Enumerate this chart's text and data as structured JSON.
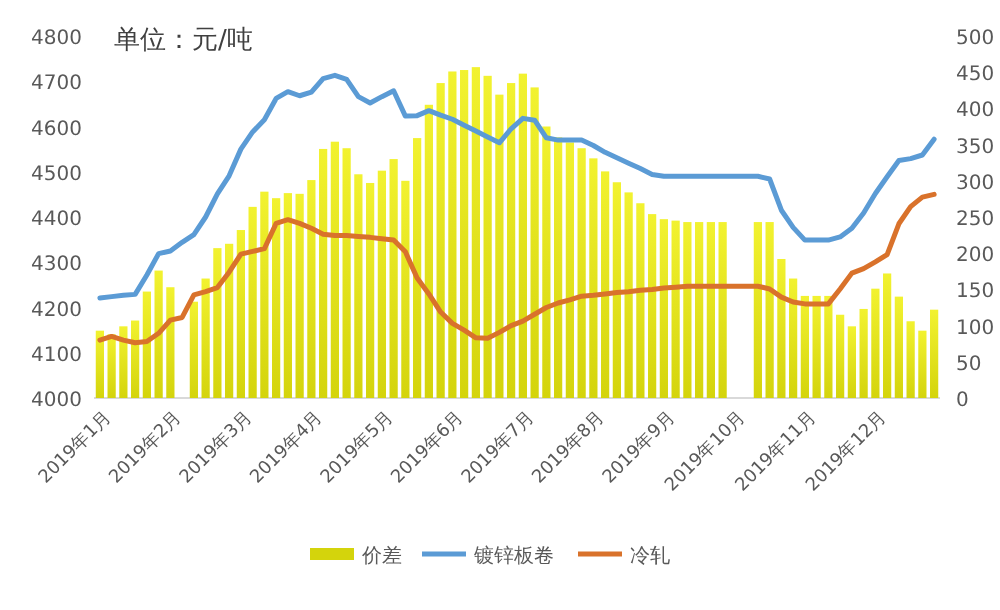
{
  "chart_data": {
    "type": "bar",
    "annotations": [
      "单位：元/吨"
    ],
    "categories": [
      null,
      "2019年1月",
      null,
      null,
      null,
      null,
      null,
      "2019年2月",
      null,
      null,
      null,
      null,
      null,
      "2019年3月",
      null,
      null,
      null,
      null,
      null,
      "2019年4月",
      null,
      null,
      null,
      null,
      null,
      "2019年5月",
      null,
      null,
      null,
      null,
      null,
      "2019年6月",
      null,
      null,
      null,
      null,
      null,
      "2019年7月",
      null,
      null,
      null,
      null,
      null,
      "2019年8月",
      null,
      null,
      null,
      null,
      null,
      "2019年9月",
      null,
      null,
      null,
      null,
      null,
      "2019年10月",
      null,
      null,
      null,
      null,
      null,
      "2019年11月",
      null,
      null,
      null,
      null,
      null,
      "2019年12月",
      null,
      null,
      null,
      null
    ],
    "series": [
      {
        "name": "价差",
        "axis": "y2",
        "color": "#d4d40c",
        "values": [
          93,
          88,
          99,
          107,
          147,
          176,
          153,
          null,
          133,
          165,
          207,
          213,
          232,
          264,
          285,
          276,
          283,
          282,
          301,
          344,
          354,
          345,
          309,
          297,
          314,
          330,
          300,
          359,
          405,
          435,
          451,
          453,
          457,
          445,
          419,
          435,
          448,
          429,
          375,
          360,
          353,
          345,
          331,
          313,
          298,
          284,
          269,
          254,
          247,
          245,
          243,
          243,
          243,
          243,
          null,
          null,
          243,
          243,
          192,
          165,
          141,
          141,
          141,
          115,
          99,
          123,
          151,
          172,
          140,
          106,
          93,
          122
        ]
      },
      {
        "name": "镀锌板卷",
        "type": "line",
        "color": "#5b9bd5",
        "values": [
          4221,
          4224,
          4227,
          4229,
          4272,
          4319,
          4325,
          4344,
          4361,
          4400,
          4451,
          4491,
          4550,
          4588,
          4615,
          4662,
          4677,
          4668,
          4676,
          4706,
          4713,
          4704,
          4666,
          4652,
          4666,
          4679,
          4623,
          4624,
          4635,
          4625,
          4616,
          4603,
          4590,
          4577,
          4564,
          4595,
          4618,
          4614,
          4575,
          4570,
          4570,
          4570,
          4558,
          4543,
          4531,
          4519,
          4507,
          4494,
          4490,
          4490,
          4490,
          4490,
          4490,
          4490,
          4490,
          4490,
          4490,
          4484,
          4415,
          4377,
          4349,
          4349,
          4349,
          4356,
          4375,
          4409,
          4452,
          4489,
          4525,
          4529,
          4537,
          4572
        ]
      },
      {
        "name": "冷轧",
        "type": "line",
        "color": "#d9722b",
        "values": [
          4128,
          4136,
          4128,
          4122,
          4125,
          4143,
          4172,
          4178,
          4228,
          4235,
          4244,
          4278,
          4318,
          4324,
          4330,
          4386,
          4394,
          4386,
          4375,
          4362,
          4359,
          4359,
          4357,
          4355,
          4352,
          4349,
          4323,
          4265,
          4230,
          4190,
          4165,
          4150,
          4133,
          4132,
          4145,
          4160,
          4170,
          4185,
          4200,
          4210,
          4217,
          4225,
          4227,
          4230,
          4233,
          4235,
          4238,
          4240,
          4243,
          4245,
          4247,
          4247,
          4247,
          4247,
          4247,
          4247,
          4247,
          4241,
          4223,
          4212,
          4208,
          4208,
          4208,
          4241,
          4276,
          4286,
          4301,
          4317,
          4385,
          4423,
          4444,
          4450
        ]
      }
    ],
    "ylim": [
      4000,
      4800
    ],
    "yticks": [
      4000,
      4100,
      4200,
      4300,
      4400,
      4500,
      4600,
      4700,
      4800
    ],
    "y2lim": [
      0,
      500
    ],
    "y2ticks": [
      0,
      50,
      100,
      150,
      200,
      250,
      300,
      350,
      400,
      450,
      500
    ],
    "legend": "bottom",
    "marker": "none"
  }
}
